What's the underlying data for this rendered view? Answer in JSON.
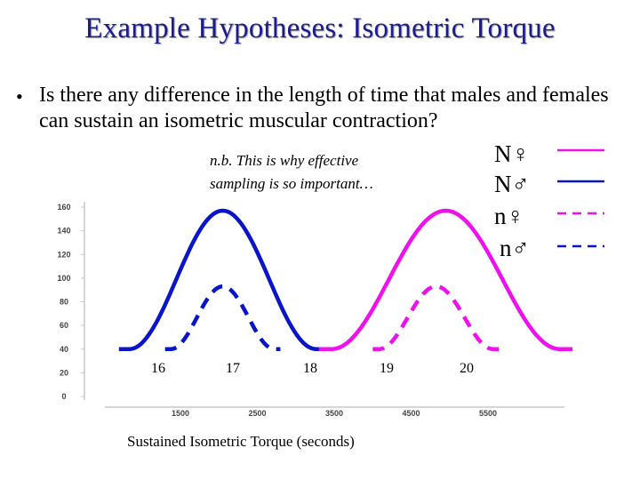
{
  "slide": {
    "title": "Example Hypotheses: Isometric Torque",
    "bullet": "Is there any difference in the length of time that males and females can sustain an isometric muscular contraction?",
    "note_line1": "n.b. This is why effective",
    "note_line2": "sampling is so important…",
    "x_caption": "Sustained Isometric Torque (seconds)"
  },
  "legend": [
    {
      "label": "N♀",
      "color": "#ee11ee",
      "style": "solid"
    },
    {
      "label": "N♂",
      "color": "#0a14c8",
      "style": "solid"
    },
    {
      "label": "n♀",
      "color": "#ee11ee",
      "style": "dashed"
    },
    {
      "label": "n♂",
      "color": "#0a14c8",
      "style": "dashed"
    }
  ],
  "colors": {
    "male": "#0a14c8",
    "female": "#ee11ee",
    "title": "#1c1c8c"
  },
  "chart_data": {
    "type": "line",
    "title": "",
    "xlabel": "Sustained Isometric Torque (seconds)",
    "ylabel": "",
    "x_ticks": [
      "1500",
      "2500",
      "3500",
      "4500",
      "5500"
    ],
    "y_ticks": [
      "0",
      "20",
      "40",
      "60",
      "80",
      "100",
      "120",
      "140",
      "160"
    ],
    "hypothesis_ticks": [
      "16",
      "17",
      "18",
      "19",
      "20"
    ],
    "ylim": [
      0,
      160
    ],
    "series": [
      {
        "name": "N♂",
        "style": "solid",
        "color": "#0a14c8",
        "baseline": 40,
        "peak": 157,
        "center": 2050,
        "start": 700,
        "end": 3400
      },
      {
        "name": "N♀",
        "style": "solid",
        "color": "#ee11ee",
        "baseline": 40,
        "peak": 157,
        "center": 4800,
        "start": 3300,
        "end": 6600
      },
      {
        "name": "n♂",
        "style": "dashed",
        "color": "#0a14c8",
        "baseline": 40,
        "peak": 93,
        "center": 2050,
        "start": 1300,
        "end": 2800
      },
      {
        "name": "n♀",
        "style": "dashed",
        "color": "#ee11ee",
        "baseline": 40,
        "peak": 93,
        "center": 4800,
        "start": 4000,
        "end": 5650
      }
    ]
  }
}
